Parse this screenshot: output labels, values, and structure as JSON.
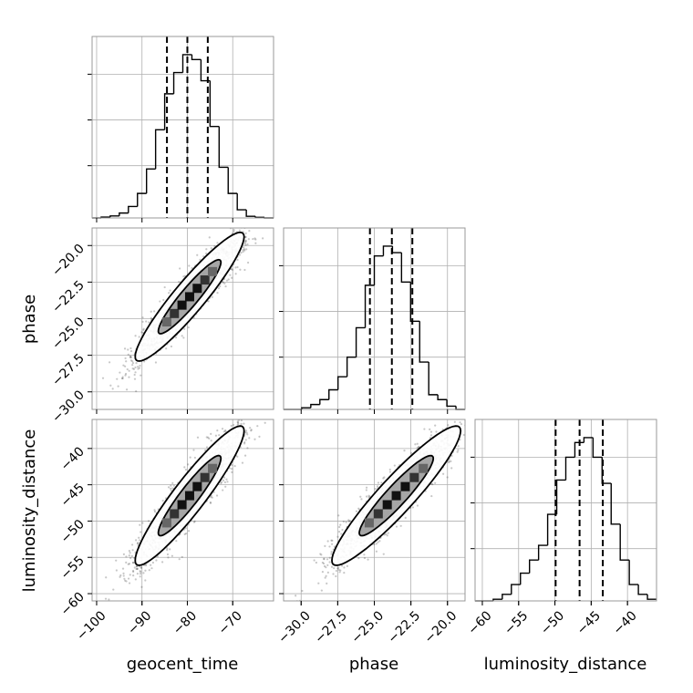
{
  "chart_data": {
    "type": "corner",
    "parameters": [
      "geocent_time",
      "phase",
      "luminosity_distance"
    ],
    "ranges": {
      "geocent_time": [
        -101,
        -61
      ],
      "phase": [
        -31.2,
        -18.8
      ],
      "luminosity_distance": [
        -61,
        -36
      ]
    },
    "ticks": {
      "geocent_time": [
        "−100",
        "−90",
        "−80",
        "−70"
      ],
      "phase": [
        "−30.0",
        "−27.5",
        "−25.0",
        "−22.5",
        "−20.0"
      ],
      "luminosity_distance": [
        "−60",
        "−55",
        "−50",
        "−45",
        "−40"
      ]
    },
    "tick_values": {
      "geocent_time": [
        -100,
        -90,
        -80,
        -70
      ],
      "phase": [
        -30.0,
        -27.5,
        -25.0,
        -22.5,
        -20.0
      ],
      "luminosity_distance": [
        -60,
        -55,
        -50,
        -45,
        -40
      ]
    },
    "histograms": [
      {
        "parameter": "geocent_time",
        "bin_edges": [
          -101,
          -99,
          -97,
          -95,
          -93,
          -91,
          -89,
          -87,
          -85,
          -83,
          -81,
          -79,
          -77,
          -75,
          -73,
          -71,
          -69,
          -67,
          -65,
          -63,
          -61
        ],
        "counts": [
          0,
          0.005,
          0.012,
          0.03,
          0.07,
          0.15,
          0.3,
          0.54,
          0.76,
          0.89,
          1.0,
          0.97,
          0.84,
          0.56,
          0.31,
          0.15,
          0.05,
          0.01,
          0.004,
          0
        ]
      },
      {
        "parameter": "phase",
        "bin_edges": [
          -31.2,
          -30.58,
          -29.96,
          -29.34,
          -28.72,
          -28.1,
          -27.48,
          -26.86,
          -26.24,
          -25.62,
          -25.0,
          -24.38,
          -23.76,
          -23.14,
          -22.52,
          -21.9,
          -21.28,
          -20.66,
          -20.04,
          -19.42,
          -18.8
        ],
        "counts": [
          0,
          0,
          0.01,
          0.03,
          0.06,
          0.12,
          0.2,
          0.32,
          0.5,
          0.76,
          0.94,
          1.0,
          0.96,
          0.78,
          0.54,
          0.29,
          0.09,
          0.06,
          0.02,
          0
        ]
      },
      {
        "parameter": "luminosity_distance",
        "bin_edges": [
          -61,
          -59.75,
          -58.5,
          -57.25,
          -56.0,
          -54.75,
          -53.5,
          -52.25,
          -51.0,
          -49.75,
          -48.5,
          -47.25,
          -46.0,
          -44.75,
          -43.5,
          -42.25,
          -41.0,
          -39.75,
          -38.5,
          -37.25,
          -36.0
        ],
        "counts": [
          0,
          0,
          0.01,
          0.04,
          0.1,
          0.17,
          0.25,
          0.34,
          0.53,
          0.74,
          0.88,
          0.97,
          1.0,
          0.88,
          0.72,
          0.47,
          0.25,
          0.1,
          0.04,
          0.01
        ]
      }
    ],
    "quantile_lines": {
      "geocent_time": [
        -84.5,
        -80.0,
        -75.5
      ],
      "phase": [
        -25.3,
        -23.8,
        -22.4
      ],
      "luminosity_distance": [
        -49.9,
        -46.6,
        -43.4
      ]
    },
    "joint_distributions": [
      {
        "x": "geocent_time",
        "y": "phase",
        "mean": [
          -79.5,
          -23.5
        ],
        "sd": [
          6.0,
          2.2
        ],
        "corr": 0.93
      },
      {
        "x": "geocent_time",
        "y": "luminosity_distance",
        "mean": [
          -79.5,
          -46.5
        ],
        "sd": [
          6.0,
          4.8
        ],
        "corr": 0.93
      },
      {
        "x": "phase",
        "y": "luminosity_distance",
        "mean": [
          -23.5,
          -46.5
        ],
        "sd": [
          2.2,
          4.8
        ],
        "corr": 0.93
      }
    ],
    "contour_levels": [
      "inner",
      "outer"
    ],
    "grid": true,
    "colors": {
      "line": "#000000",
      "scatter": "#444444",
      "grid": "#b0b0b0",
      "frame": "#999999",
      "contour_fill": "#ffffff"
    }
  }
}
